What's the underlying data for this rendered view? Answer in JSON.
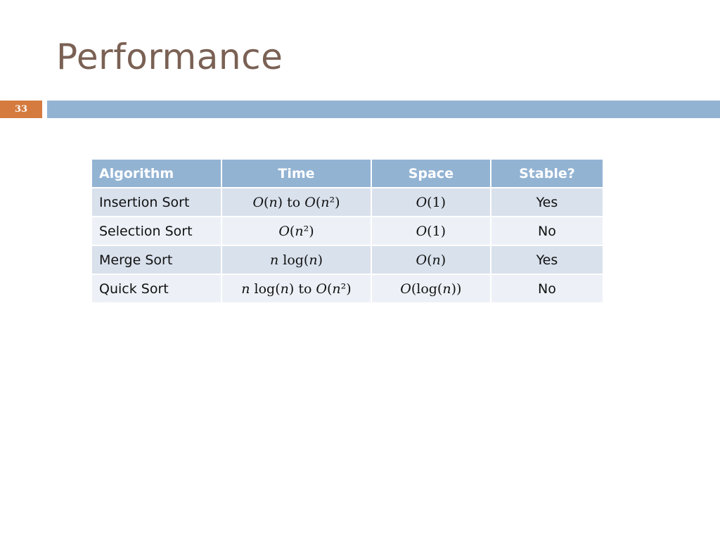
{
  "slide": {
    "title": "Performance",
    "number": "33"
  },
  "table": {
    "headers": [
      "Algorithm",
      "Time",
      "Space",
      "Stable?"
    ],
    "rows": [
      {
        "algorithm": "Insertion Sort",
        "time": "𝑂(𝑛) to 𝑂(𝑛²)",
        "space": "𝑂(1)",
        "stable": "Yes"
      },
      {
        "algorithm": "Selection Sort",
        "time": "𝑂(𝑛²)",
        "space": "𝑂(1)",
        "stable": "No"
      },
      {
        "algorithm": "Merge Sort",
        "time": "𝑛 log(𝑛)",
        "space": "𝑂(𝑛)",
        "stable": "Yes"
      },
      {
        "algorithm": "Quick Sort",
        "time": "𝑛 log(𝑛) to 𝑂(𝑛²)",
        "space": "𝑂(log(𝑛))",
        "stable": "No"
      }
    ]
  },
  "colors": {
    "title": "#7a6154",
    "accent_orange": "#d57b3f",
    "accent_blue": "#93b3d3"
  }
}
